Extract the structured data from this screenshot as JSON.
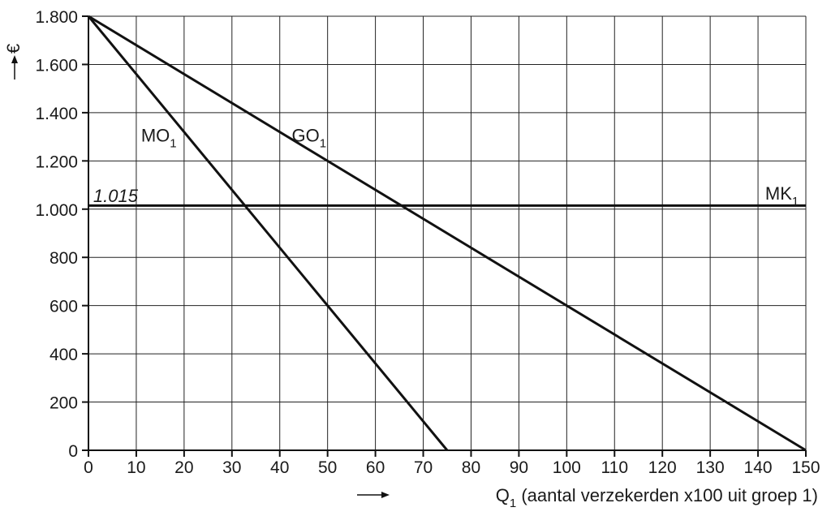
{
  "chart_data": {
    "type": "line",
    "xlabel": "Q",
    "xlabel_sub": "1",
    "xlabel_rest": " (aantal verzekerden x100 uit groep 1)",
    "ylabel": "€",
    "xlim": [
      0,
      150
    ],
    "ylim": [
      0,
      1800
    ],
    "x_ticks": [
      0,
      10,
      20,
      30,
      40,
      50,
      60,
      70,
      80,
      90,
      100,
      110,
      120,
      130,
      140,
      150
    ],
    "y_ticks": [
      0,
      200,
      400,
      600,
      800,
      1000,
      1200,
      1400,
      1600,
      1800
    ],
    "y_tick_labels": [
      "0",
      "200",
      "400",
      "600",
      "800",
      "1.000",
      "1.200",
      "1.400",
      "1.600",
      "1.800"
    ],
    "grid": true,
    "series": [
      {
        "name": "MO",
        "name_sub": "1",
        "points": [
          [
            0,
            1800
          ],
          [
            75,
            0
          ]
        ]
      },
      {
        "name": "GO",
        "name_sub": "1",
        "points": [
          [
            0,
            1800
          ],
          [
            150,
            0
          ]
        ]
      },
      {
        "name": "MK",
        "name_sub": "1",
        "points": [
          [
            0,
            1015
          ],
          [
            150,
            1015
          ]
        ]
      }
    ],
    "annotations": [
      {
        "text": "1.015",
        "x": 0,
        "y": 1015
      }
    ]
  }
}
